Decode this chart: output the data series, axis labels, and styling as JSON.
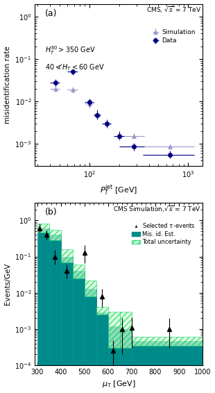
{
  "panel_a": {
    "title_text": "CMS, $\\sqrt{s}$ = 7 TeV",
    "label_text": "(a)",
    "condition1": "$H_T^{60} > 350$ GeV",
    "condition2": "$40 < \\not{H}_T < 60$ GeV",
    "ylabel": "misidentification rate",
    "xlabel": "$P_T^{\\mathrm{jet}}$ [GeV]",
    "xlim": [
      28,
      1400
    ],
    "ylim": [
      0.0003,
      2.0
    ],
    "sim_x": [
      45,
      68,
      100,
      120,
      150,
      200,
      280,
      650
    ],
    "sim_y": [
      0.02,
      0.019,
      0.009,
      0.005,
      0.003,
      0.0015,
      0.00155,
      0.00085
    ],
    "sim_xerr_lo": [
      5,
      8,
      10,
      10,
      15,
      25,
      80,
      300
    ],
    "sim_xerr_hi": [
      5,
      8,
      10,
      10,
      15,
      25,
      80,
      500
    ],
    "sim_yerr_lo": [
      0.003,
      0.003,
      0.0015,
      0.001,
      0.0005,
      0.0003,
      0.0002,
      0.0001
    ],
    "sim_yerr_hi": [
      0.003,
      0.003,
      0.0015,
      0.001,
      0.0005,
      0.0003,
      0.0002,
      0.0001
    ],
    "data_x": [
      45,
      68,
      100,
      120,
      150,
      200,
      280,
      650
    ],
    "data_y": [
      0.028,
      0.05,
      0.0095,
      0.0048,
      0.003,
      0.00155,
      0.00085,
      0.00055
    ],
    "data_xerr_lo": [
      5,
      8,
      10,
      10,
      15,
      25,
      80,
      300
    ],
    "data_xerr_hi": [
      5,
      8,
      10,
      10,
      15,
      25,
      80,
      500
    ],
    "data_yerr_lo": [
      0.005,
      0.008,
      0.002,
      0.001,
      0.0006,
      0.0003,
      0.00015,
      0.0001
    ],
    "data_yerr_hi": [
      0.006,
      0.01,
      0.002,
      0.0015,
      0.0008,
      0.0004,
      0.0002,
      0.00015
    ],
    "sim_color": "#9999cc",
    "data_color": "#000080"
  },
  "panel_b": {
    "title_text": "CMS Simulation,$\\sqrt{s}$ = 7 TeV",
    "label_text": "(b)",
    "ylabel": "Events/GeV",
    "xlabel": "$\\mu_{\\tau}$ [GeV]",
    "xlim": [
      290,
      1000
    ],
    "ylim": [
      0.0001,
      3.0
    ],
    "hist_edges": [
      300,
      350,
      400,
      450,
      500,
      550,
      600,
      650,
      700,
      1000
    ],
    "hist_vals": [
      0.6,
      0.4,
      0.1,
      0.04,
      0.013,
      0.0028,
      0.0012,
      0.001,
      0.00045
    ],
    "unc_lo": [
      0.45,
      0.28,
      0.07,
      0.025,
      0.008,
      0.0025,
      0.0003,
      0.0003,
      0.00035
    ],
    "unc_hi": [
      0.8,
      0.55,
      0.16,
      0.06,
      0.022,
      0.004,
      0.003,
      0.003,
      0.0006
    ],
    "data_x": [
      310,
      340,
      375,
      425,
      500,
      575,
      620,
      660,
      700,
      860
    ],
    "data_y": [
      0.6,
      0.4,
      0.1,
      0.04,
      0.125,
      0.008,
      0.00025,
      0.001,
      0.0011,
      0.001
    ],
    "data_yerr_lo": [
      0.15,
      0.1,
      0.04,
      0.015,
      0.06,
      0.004,
      0.0002,
      0.0008,
      0.0008,
      0.0007
    ],
    "data_yerr_hi": [
      0.2,
      0.12,
      0.05,
      0.02,
      0.08,
      0.005,
      0.00025,
      0.001,
      0.001,
      0.001
    ],
    "fill_color": "#008B8B",
    "unc_edge_color": "#00cc66",
    "data_color": "#000000"
  }
}
